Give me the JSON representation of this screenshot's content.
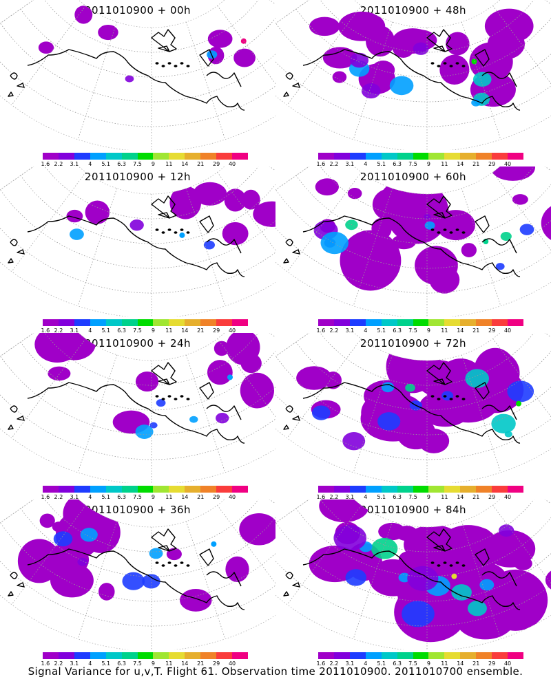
{
  "caption": "Signal Variance for u,v,T. Flight 61. Observation time 2011010900. 2011010700 ensemble.",
  "colorbar": {
    "colors": [
      "#a000c8",
      "#8200dc",
      "#1e3cff",
      "#00a0ff",
      "#00c8c8",
      "#00d28c",
      "#00dc00",
      "#a0e632",
      "#e6dc32",
      "#e6af2d",
      "#f08228",
      "#fa3c3c",
      "#f00082"
    ],
    "labels": [
      "1.6",
      "2.2",
      "3.1",
      "4",
      "5.1",
      "6.3",
      "7.5",
      "9",
      "11",
      "14",
      "21",
      "29",
      "40"
    ]
  },
  "panels": [
    {
      "title": "2011010900 + 00h",
      "coverage": 0.1,
      "variance_max_level": 12
    },
    {
      "title": "2011010900 + 48h",
      "coverage": 0.55,
      "variance_max_level": 6
    },
    {
      "title": "2011010900 + 12h",
      "coverage": 0.2,
      "variance_max_level": 3
    },
    {
      "title": "2011010900 + 60h",
      "coverage": 0.65,
      "variance_max_level": 5
    },
    {
      "title": "2011010900 + 24h",
      "coverage": 0.3,
      "variance_max_level": 3
    },
    {
      "title": "2011010900 + 72h",
      "coverage": 0.8,
      "variance_max_level": 6
    },
    {
      "title": "2011010900 + 36h",
      "coverage": 0.4,
      "variance_max_level": 3
    },
    {
      "title": "2011010900 + 84h",
      "coverage": 0.9,
      "variance_max_level": 8
    }
  ]
}
